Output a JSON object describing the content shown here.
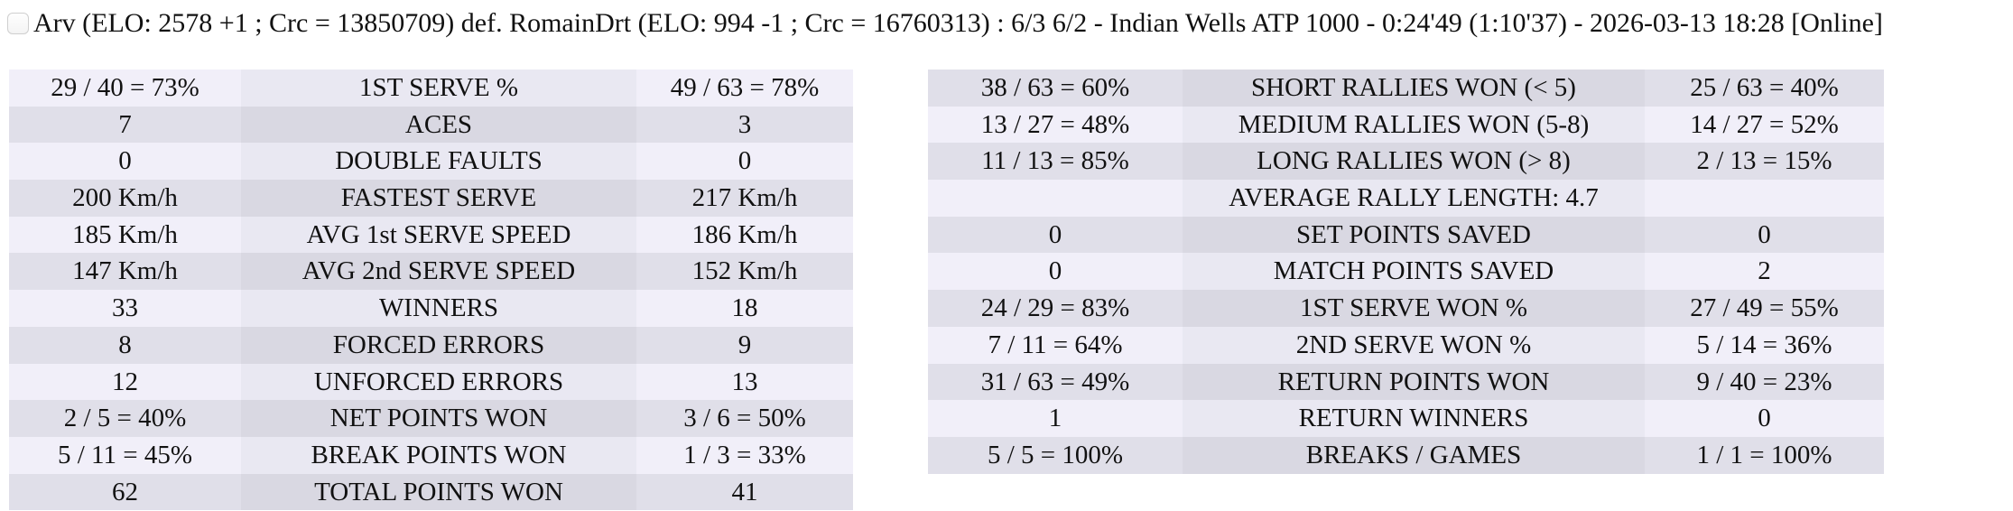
{
  "header": {
    "checkbox_checked": false,
    "title": "Arv (ELO: 2578 +1 ; Crc = 13850709) def. RomainDrt (ELO: 994 -1 ; Crc = 16760313) : 6/3 6/2 - Indian Wells ATP 1000 - 0:24'49 (1:10'37) - 2026-03-13 18:28 [Online]"
  },
  "colors": {
    "value_cell_light": "#f1eff9",
    "label_cell_light": "#e9e8f2",
    "value_cell_dark": "#e0dfe9",
    "label_cell_dark": "#d9d8e2",
    "text": "#111111"
  },
  "stats_left": {
    "first_row_shade": "light",
    "rows": [
      {
        "p1": "29 / 40 = 73%",
        "label": "1ST SERVE %",
        "p2": "49 / 63 = 78%"
      },
      {
        "p1": "7",
        "label": "ACES",
        "p2": "3"
      },
      {
        "p1": "0",
        "label": "DOUBLE FAULTS",
        "p2": "0"
      },
      {
        "p1": "200 Km/h",
        "label": "FASTEST SERVE",
        "p2": "217 Km/h"
      },
      {
        "p1": "185 Km/h",
        "label": "AVG 1st SERVE SPEED",
        "p2": "186 Km/h"
      },
      {
        "p1": "147 Km/h",
        "label": "AVG 2nd SERVE SPEED",
        "p2": "152 Km/h"
      },
      {
        "p1": "33",
        "label": "WINNERS",
        "p2": "18"
      },
      {
        "p1": "8",
        "label": "FORCED ERRORS",
        "p2": "9"
      },
      {
        "p1": "12",
        "label": "UNFORCED ERRORS",
        "p2": "13"
      },
      {
        "p1": "2 / 5 = 40%",
        "label": "NET POINTS WON",
        "p2": "3 / 6 = 50%"
      },
      {
        "p1": "5 / 11 = 45%",
        "label": "BREAK POINTS WON",
        "p2": "1 / 3 = 33%"
      },
      {
        "p1": "62",
        "label": "TOTAL POINTS WON",
        "p2": "41"
      }
    ]
  },
  "stats_right": {
    "first_row_shade": "dark",
    "rows": [
      {
        "p1": "38 / 63 = 60%",
        "label": "SHORT RALLIES WON (< 5)",
        "p2": "25 / 63 = 40%"
      },
      {
        "p1": "13 / 27 = 48%",
        "label": "MEDIUM RALLIES WON (5-8)",
        "p2": "14 / 27 = 52%"
      },
      {
        "p1": "11 / 13 = 85%",
        "label": "LONG RALLIES WON (> 8)",
        "p2": "2 / 13 = 15%"
      },
      {
        "p1": "",
        "label": "AVERAGE RALLY LENGTH: 4.7",
        "p2": ""
      },
      {
        "p1": "0",
        "label": "SET POINTS SAVED",
        "p2": "0"
      },
      {
        "p1": "0",
        "label": "MATCH POINTS SAVED",
        "p2": "2"
      },
      {
        "p1": "24 / 29 = 83%",
        "label": "1ST SERVE WON %",
        "p2": "27 / 49 = 55%"
      },
      {
        "p1": "7 / 11 = 64%",
        "label": "2ND SERVE WON %",
        "p2": "5 / 14 = 36%"
      },
      {
        "p1": "31 / 63 = 49%",
        "label": "RETURN POINTS WON",
        "p2": "9 / 40 = 23%"
      },
      {
        "p1": "1",
        "label": "RETURN WINNERS",
        "p2": "0"
      },
      {
        "p1": "5 / 5 = 100%",
        "label": "BREAKS / GAMES",
        "p2": "1 / 1 = 100%"
      }
    ]
  }
}
